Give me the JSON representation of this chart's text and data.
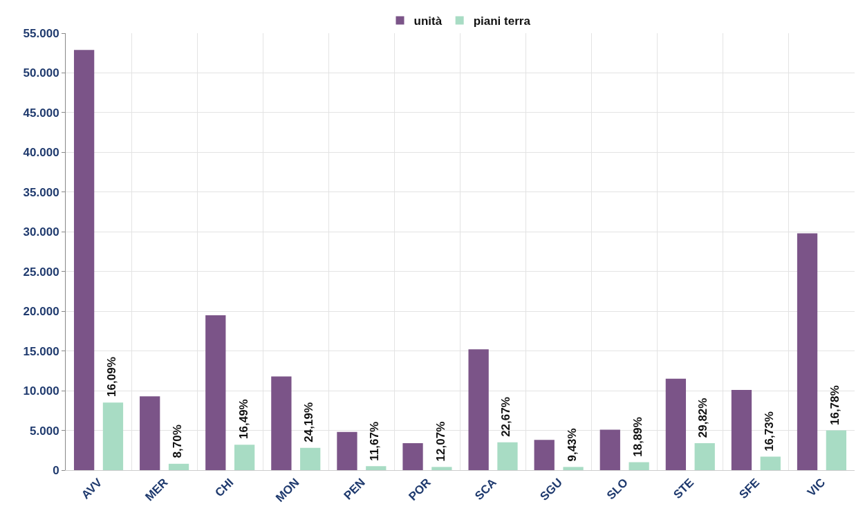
{
  "chart_data": {
    "type": "bar",
    "categories": [
      "AVV",
      "MER",
      "CHI",
      "MON",
      "PEN",
      "POR",
      "SCA",
      "SGU",
      "SLO",
      "STE",
      "SFE",
      "VIC"
    ],
    "series": [
      {
        "name": "unità",
        "color": "#7b5488",
        "values": [
          52900,
          9300,
          19500,
          11800,
          4800,
          3400,
          15200,
          3800,
          5100,
          11500,
          10100,
          29800
        ]
      },
      {
        "name": "piani terra",
        "color": "#a8dcc4",
        "values": [
          8500,
          800,
          3200,
          2800,
          500,
          400,
          3500,
          400,
          1000,
          3400,
          1700,
          5000
        ]
      }
    ],
    "annotations": [
      {
        "text": "16,09%",
        "x": "AVV",
        "y": 8500
      },
      {
        "text": "8,70%",
        "x": "MER",
        "y": 800
      },
      {
        "text": "16,49%",
        "x": "CHI",
        "y": 3200
      },
      {
        "text": "24,19%",
        "x": "MON",
        "y": 2800
      },
      {
        "text": "11,67%",
        "x": "PEN",
        "y": 500
      },
      {
        "text": "12,07%",
        "x": "POR",
        "y": 400
      },
      {
        "text": "22,67%",
        "x": "SCA",
        "y": 3500
      },
      {
        "text": "9,43%",
        "x": "SGU",
        "y": 400
      },
      {
        "text": "18,89%",
        "x": "SLO",
        "y": 1000
      },
      {
        "text": "29,82%",
        "x": "STE",
        "y": 3400
      },
      {
        "text": "16,73%",
        "x": "SFE",
        "y": 1700
      },
      {
        "text": "16,78%",
        "x": "VIC",
        "y": 5000
      }
    ],
    "ylim": [
      0,
      55000
    ],
    "yticks": [
      {
        "value": 0,
        "label": "0"
      },
      {
        "value": 5000,
        "label": "5.000"
      },
      {
        "value": 10000,
        "label": "10.000"
      },
      {
        "value": 15000,
        "label": "15.000"
      },
      {
        "value": 20000,
        "label": "20.000"
      },
      {
        "value": 25000,
        "label": "25.000"
      },
      {
        "value": 30000,
        "label": "30.000"
      },
      {
        "value": 35000,
        "label": "35.000"
      },
      {
        "value": 40000,
        "label": "40.000"
      },
      {
        "value": 45000,
        "label": "45.000"
      },
      {
        "value": 50000,
        "label": "50.000"
      },
      {
        "value": 55000,
        "label": "55.000"
      }
    ],
    "grid": true,
    "legend": "top"
  }
}
